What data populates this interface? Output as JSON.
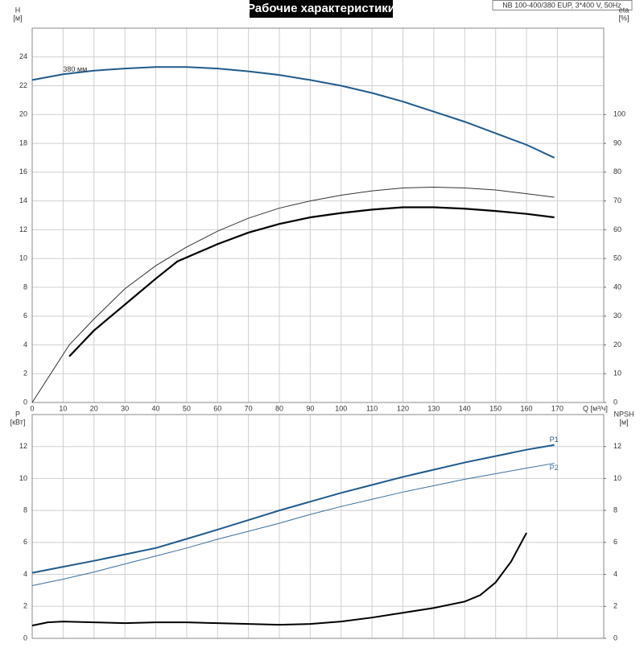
{
  "chart_data": [
    {
      "type": "line",
      "title": "Рабочие характеристики",
      "subtitle": "NB 100-400/380 EUP, 3*400 V, 50Hz",
      "ylabel": "H",
      "yunit": "[м]",
      "y2label": "eta",
      "y2unit": "[%]",
      "xlabel": "Q [м³/ч]",
      "annotations": [
        {
          "text": "380 мм",
          "x": 10,
          "y": 23
        }
      ],
      "xlim": [
        0,
        185
      ],
      "xticks": [
        0,
        10,
        20,
        30,
        40,
        50,
        60,
        70,
        80,
        90,
        100,
        110,
        120,
        130,
        140,
        150,
        160,
        170
      ],
      "ylim": [
        0,
        26
      ],
      "yticks": [
        0,
        2,
        4,
        6,
        8,
        10,
        12,
        14,
        16,
        18,
        20,
        22,
        24
      ],
      "y2lim": [
        0,
        130
      ],
      "y2ticks": [
        0,
        10,
        20,
        30,
        40,
        50,
        60,
        70,
        80,
        90,
        100
      ],
      "grid": true,
      "series": [
        {
          "color": "#1f5a8c",
          "width": 2,
          "x": [
            0,
            10,
            20,
            30,
            40,
            50,
            60,
            70,
            80,
            90,
            100,
            110,
            120,
            130,
            140,
            150,
            160,
            169
          ],
          "values": [
            22.4,
            22.8,
            23.05,
            23.2,
            23.3,
            23.3,
            23.2,
            23.0,
            22.75,
            22.4,
            22.0,
            21.5,
            20.9,
            20.2,
            19.5,
            18.7,
            17.9,
            17.0
          ]
        },
        {
          "color": "#333333",
          "width": 1,
          "axis": "y2",
          "x": [
            0,
            12,
            20,
            30,
            40,
            50,
            60,
            70,
            80,
            90,
            100,
            110,
            120,
            130,
            140,
            150,
            160,
            169
          ],
          "values": [
            0,
            20,
            29,
            39.5,
            47.5,
            54,
            59.5,
            64,
            67.5,
            70,
            72,
            73.5,
            74.5,
            74.8,
            74.5,
            73.8,
            72.5,
            71.3
          ]
        },
        {
          "color": "#000000",
          "width": 2.2,
          "axis": "y2",
          "x": [
            12,
            20,
            30,
            40,
            47,
            60,
            70,
            80,
            90,
            100,
            110,
            120,
            130,
            140,
            150,
            160,
            169
          ],
          "values": [
            16,
            25,
            34,
            43,
            49,
            55,
            59,
            62,
            64.3,
            65.8,
            67,
            67.8,
            67.8,
            67.3,
            66.5,
            65.5,
            64.3
          ]
        }
      ]
    },
    {
      "type": "line",
      "ylabel": "P",
      "yunit": "[кВт]",
      "y2label": "NPSH",
      "y2unit": "[м]",
      "xlim": [
        0,
        185
      ],
      "ylim": [
        0,
        14
      ],
      "yticks": [
        0,
        2,
        4,
        6,
        8,
        10,
        12
      ],
      "y2lim": [
        0,
        14
      ],
      "y2ticks": [
        0,
        2,
        4,
        6,
        8,
        10,
        12
      ],
      "grid": true,
      "series": [
        {
          "name": "P1",
          "color": "#1f5a8c",
          "width": 2,
          "x": [
            0,
            12,
            20,
            30,
            40,
            47,
            60,
            70,
            80,
            90,
            100,
            110,
            120,
            130,
            140,
            150,
            160,
            169
          ],
          "values": [
            4.1,
            4.55,
            4.85,
            5.25,
            5.65,
            6.05,
            6.8,
            7.4,
            8.0,
            8.55,
            9.1,
            9.6,
            10.1,
            10.55,
            11.0,
            11.4,
            11.8,
            12.1
          ]
        },
        {
          "name": "P2",
          "color": "#3a6fa0",
          "width": 1,
          "x": [
            0,
            10,
            20,
            30,
            40,
            50,
            60,
            70,
            80,
            90,
            100,
            110,
            120,
            130,
            140,
            150,
            160,
            169
          ],
          "values": [
            3.3,
            3.7,
            4.15,
            4.65,
            5.15,
            5.65,
            6.2,
            6.7,
            7.2,
            7.75,
            8.25,
            8.7,
            9.15,
            9.55,
            9.95,
            10.3,
            10.65,
            10.95
          ]
        },
        {
          "color": "#000000",
          "width": 2,
          "axis": "y2",
          "x": [
            0,
            5,
            10,
            20,
            30,
            40,
            50,
            60,
            70,
            80,
            90,
            100,
            110,
            120,
            130,
            140,
            145,
            150,
            155,
            160
          ],
          "values": [
            0.8,
            1.0,
            1.05,
            1.0,
            0.95,
            1.0,
            1.0,
            0.95,
            0.9,
            0.85,
            0.9,
            1.05,
            1.3,
            1.6,
            1.9,
            2.3,
            2.7,
            3.5,
            4.8,
            6.6
          ]
        }
      ]
    }
  ]
}
